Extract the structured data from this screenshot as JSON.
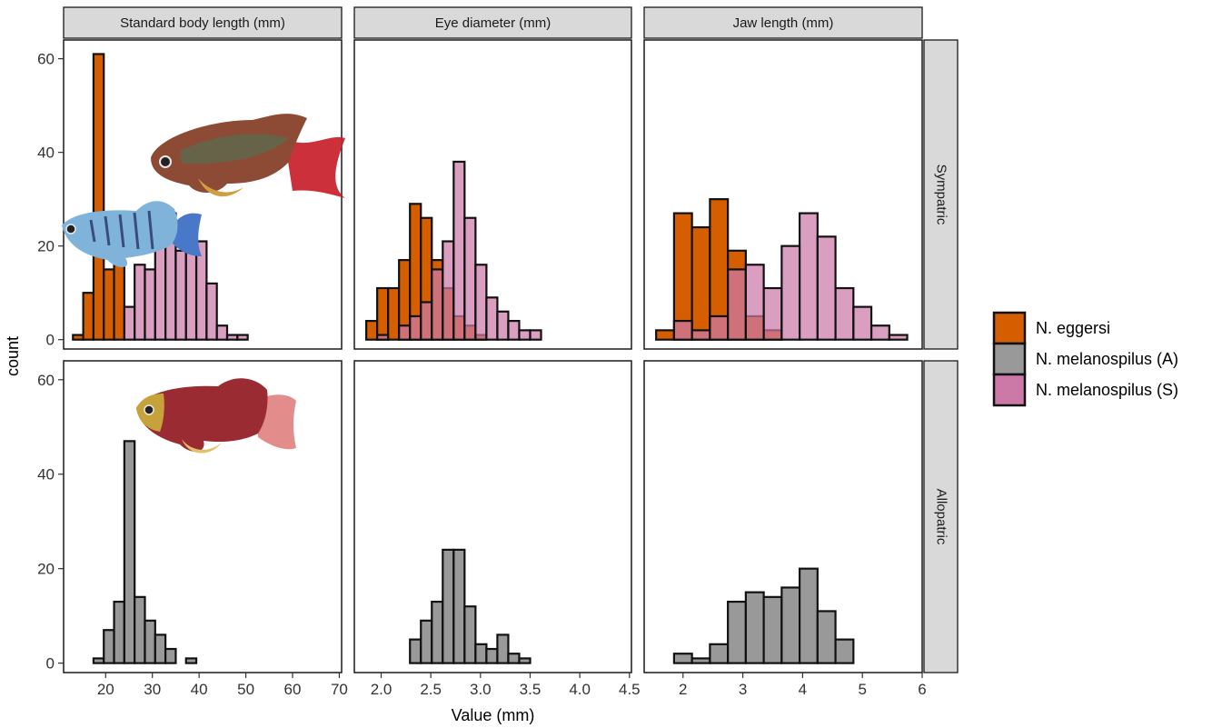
{
  "chart_data": {
    "type": "bar",
    "subtype": "faceted-histogram",
    "xlabel": "Value (mm)",
    "ylabel": "count",
    "ylim": [
      -2,
      64
    ],
    "y_ticks": [
      0,
      20,
      40,
      60
    ],
    "legend": {
      "placement": "right",
      "entries": [
        {
          "name": "N. eggersi",
          "color": "#D55E00"
        },
        {
          "name": "N. melanospilus (A)",
          "color": "#999999"
        },
        {
          "name": "N. melanospilus (S)",
          "color": "#CC79A7"
        }
      ]
    },
    "columns": [
      {
        "label": "Standard body length (mm)",
        "xlim": [
          11,
          70.5
        ],
        "x_ticks": [
          20,
          30,
          40,
          50,
          60,
          70
        ],
        "bins": [
          13,
          15.2,
          17.4,
          19.6,
          21.8,
          24,
          26.2,
          28.4,
          30.6,
          32.8,
          35,
          37.2,
          39.4,
          41.6,
          43.8,
          46,
          48.2,
          50.4,
          52.6,
          54.8,
          57,
          59.2,
          61.4,
          63.6,
          65.8,
          68
        ]
      },
      {
        "label": "Eye diameter (mm)",
        "xlim": [
          1.73,
          4.52
        ],
        "x_ticks": [
          2.0,
          2.5,
          3.0,
          3.5,
          4.0,
          4.5
        ],
        "bins": [
          1.85,
          1.96,
          2.07,
          2.18,
          2.29,
          2.4,
          2.51,
          2.62,
          2.73,
          2.84,
          2.95,
          3.06,
          3.17,
          3.28,
          3.39,
          3.5,
          3.61,
          3.72,
          3.83,
          3.94,
          4.05,
          4.16,
          4.27,
          4.38,
          4.49
        ]
      },
      {
        "label": "Jaw length (mm)",
        "xlim": [
          1.35,
          6.0
        ],
        "x_ticks": [
          2,
          3,
          4,
          5,
          6
        ],
        "bins": [
          1.55,
          1.85,
          2.15,
          2.45,
          2.75,
          3.05,
          3.35,
          3.65,
          3.95,
          4.25,
          4.55,
          4.85,
          5.15,
          5.45,
          5.75
        ]
      }
    ],
    "rows": [
      {
        "label": "Sympatric"
      },
      {
        "label": "Allopatric"
      }
    ],
    "series": [
      {
        "panel": "Sympatric / Standard body length (mm)",
        "name": "N. eggersi",
        "color": "#D55E00",
        "values": [
          1,
          10,
          61,
          15,
          16,
          0,
          0,
          0,
          0,
          0,
          0,
          0,
          0,
          0,
          0,
          0,
          0,
          0,
          0,
          0,
          0,
          0,
          0,
          0,
          0
        ]
      },
      {
        "panel": "Sympatric / Standard body length (mm)",
        "name": "N. melanospilus (S)",
        "color": "#CC79A7",
        "values": [
          0,
          0,
          0,
          0,
          0,
          7,
          16,
          15,
          22,
          27,
          19,
          20,
          21,
          12,
          3,
          1,
          1,
          0,
          0,
          0,
          0,
          0,
          0,
          0,
          0
        ]
      },
      {
        "panel": "Sympatric / Eye diameter (mm)",
        "name": "N. eggersi",
        "color": "#D55E00",
        "values": [
          4,
          11,
          11,
          17,
          29,
          26,
          17,
          11,
          5,
          3,
          1,
          0,
          0,
          0,
          0,
          0,
          0,
          0,
          0,
          0,
          0,
          0,
          0,
          0
        ]
      },
      {
        "panel": "Sympatric / Eye diameter (mm)",
        "name": "N. melanospilus (S)",
        "color": "#CC79A7",
        "values": [
          0,
          1,
          0,
          3,
          5,
          8,
          15,
          21,
          38,
          26,
          16,
          9,
          6,
          4,
          2,
          2,
          0,
          0,
          0,
          0,
          0,
          0,
          0,
          0
        ]
      },
      {
        "panel": "Sympatric / Jaw length (mm)",
        "name": "N. eggersi",
        "color": "#D55E00",
        "values": [
          2,
          27,
          24,
          30,
          19,
          5,
          2,
          0,
          0,
          0,
          0,
          0,
          0,
          0
        ]
      },
      {
        "panel": "Sympatric / Jaw length (mm)",
        "name": "N. melanospilus (S)",
        "color": "#CC79A7",
        "values": [
          0,
          4,
          2,
          5,
          15,
          16,
          11,
          20,
          27,
          22,
          11,
          7,
          3,
          1
        ]
      },
      {
        "panel": "Allopatric / Standard body length (mm)",
        "name": "N. melanospilus (A)",
        "color": "#999999",
        "values": [
          0,
          0,
          1,
          7,
          13,
          47,
          14,
          9,
          6,
          3,
          0,
          1,
          0,
          0,
          0,
          0,
          0,
          0,
          0,
          0,
          0,
          0,
          0,
          0,
          0
        ]
      },
      {
        "panel": "Allopatric / Eye diameter (mm)",
        "name": "N. melanospilus (A)",
        "color": "#999999",
        "values": [
          0,
          0,
          0,
          0,
          5,
          9,
          13,
          24,
          24,
          12,
          4,
          3,
          6,
          2,
          1,
          0,
          0,
          0,
          0,
          0,
          0,
          0,
          0,
          0
        ]
      },
      {
        "panel": "Allopatric / Jaw length (mm)",
        "name": "N. melanospilus (A)",
        "color": "#999999",
        "values": [
          0,
          2,
          1,
          4,
          13,
          15,
          14,
          16,
          20,
          11,
          5,
          0,
          0,
          0
        ]
      }
    ]
  }
}
